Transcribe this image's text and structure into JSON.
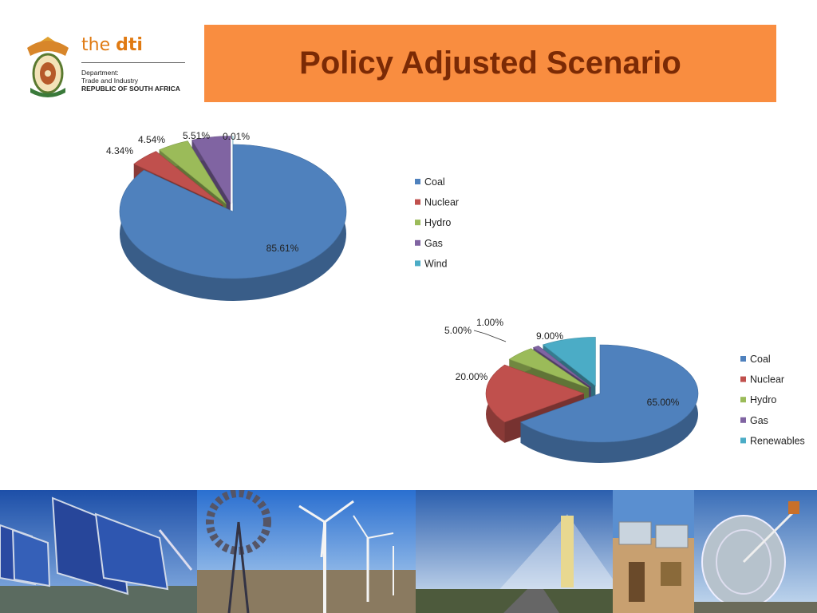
{
  "header": {
    "logo_word_the": "the",
    "logo_word_dti": "dti",
    "logo_line1": "Department:",
    "logo_line2": "Trade and Industry",
    "logo_line3": "REPUBLIC OF SOUTH AFRICA",
    "title": "Policy Adjusted Scenario"
  },
  "colors": {
    "title_bg": "#f98d40",
    "title_text": "#7b2a05",
    "coal": "#4f81bd",
    "nuclear": "#c0504d",
    "hydro": "#9bbb59",
    "gas": "#8064a2",
    "wind": "#4bacc6"
  },
  "chart_data": [
    {
      "type": "pie",
      "style": "3d-exploded",
      "legend_position": "right",
      "categories": [
        "Coal",
        "Nuclear",
        "Hydro",
        "Gas",
        "Wind"
      ],
      "values": [
        85.61,
        4.34,
        4.54,
        5.51,
        0.01
      ],
      "labels": [
        "85.61%",
        "4.34%",
        "4.54%",
        "5.51%",
        "0.01%"
      ]
    },
    {
      "type": "pie",
      "style": "3d-exploded",
      "legend_position": "right",
      "categories": [
        "Coal",
        "Nuclear",
        "Hydro",
        "Gas",
        "Renewables"
      ],
      "values": [
        65.0,
        20.0,
        5.0,
        1.0,
        9.0
      ],
      "labels": [
        "65.00%",
        "20.00%",
        "5.00%",
        "1.00%",
        "9.00%"
      ]
    }
  ],
  "photos": [
    "solar-panels-photo",
    "wind-turbines-photo",
    "solar-tower-photo",
    "solar-water-heater-photo",
    "solar-dish-photo"
  ]
}
